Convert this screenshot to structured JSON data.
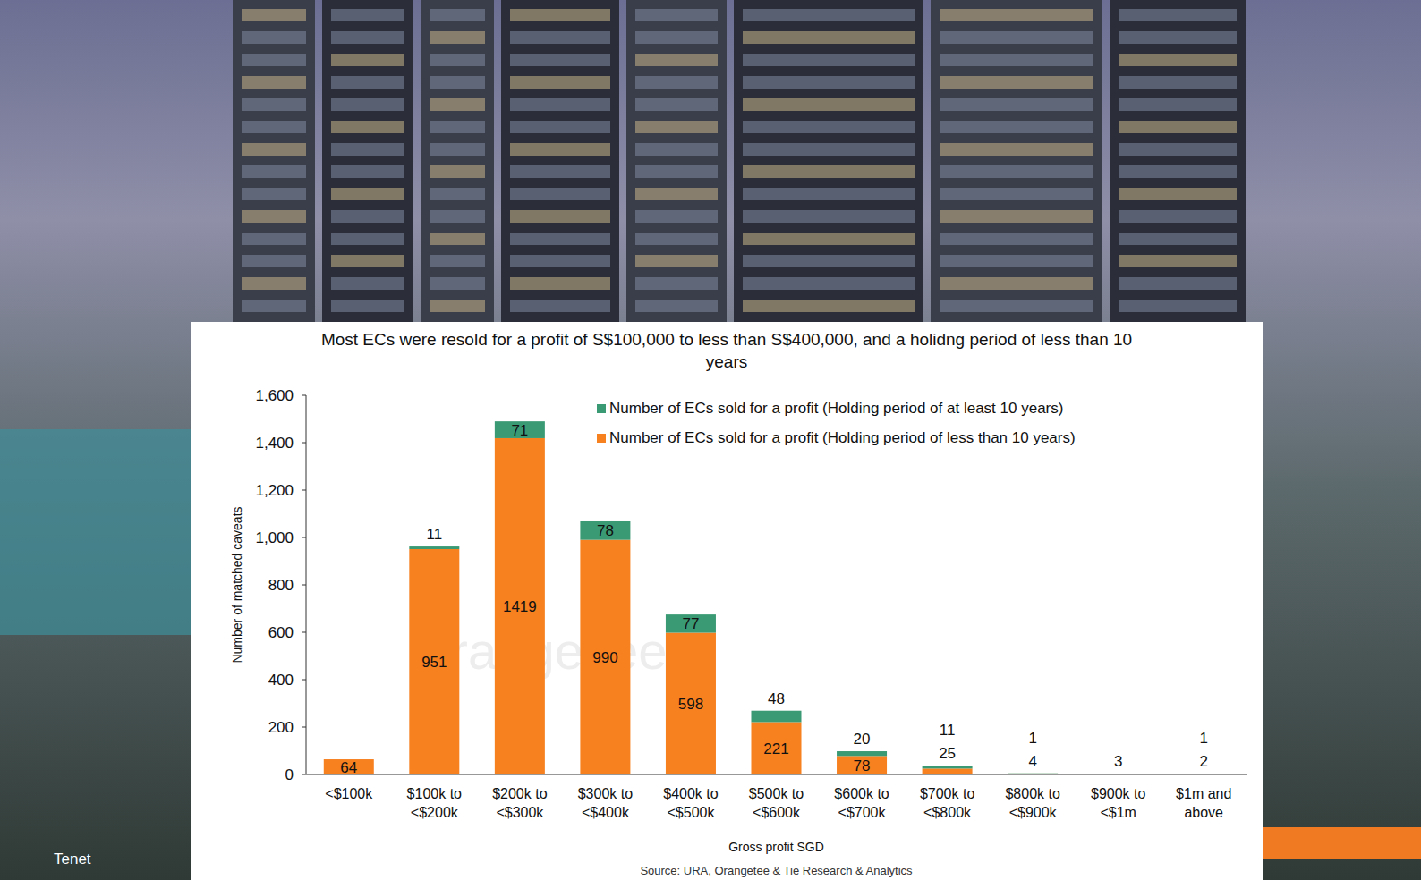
{
  "chart_data": {
    "type": "bar",
    "title": "Most ECs were resold for a profit of S$100,000 to less than S$400,000, and a holidng period of less than 10 years",
    "x_label": "Gross profit SGD",
    "y_label": "Number of matched caveats",
    "source": "Source: URA, Orangetee & Tie Research & Analytics",
    "annotations": [
      "Tenet",
      "OrangeTee"
    ],
    "categories": [
      "<$100k",
      "$100k to <$200k",
      "$200k to <$300k",
      "$300k to <$400k",
      "$400k to <$500k",
      "$500k to <$600k",
      "$600k to <$700k",
      "$700k to <$800k",
      "$800k to <$900k",
      "$900k to <$1m",
      "$1m and above"
    ],
    "series": [
      {
        "name": "Number of ECs sold for a profit (Holding period of less than 10 years)",
        "color": "#f7801f",
        "values": [
          64,
          951,
          1419,
          990,
          598,
          221,
          78,
          25,
          4,
          3,
          2
        ]
      },
      {
        "name": "Number of ECs sold for a profit (Holding period of at least 10 years)",
        "color": "#3a9a74",
        "values": [
          null,
          11,
          71,
          78,
          77,
          48,
          20,
          11,
          1,
          null,
          1
        ]
      }
    ],
    "stacked": true,
    "data_labels": true,
    "legend": "top-right",
    "grid": false,
    "ylim": [
      0,
      1600
    ],
    "yticks": [
      0,
      200,
      400,
      600,
      800,
      {
        "value": 1000,
        "label": "1,000"
      },
      {
        "value": 1200,
        "label": "1,200"
      },
      {
        "value": 1400,
        "label": "1,400"
      },
      {
        "value": 1600,
        "label": "1,600"
      }
    ]
  }
}
